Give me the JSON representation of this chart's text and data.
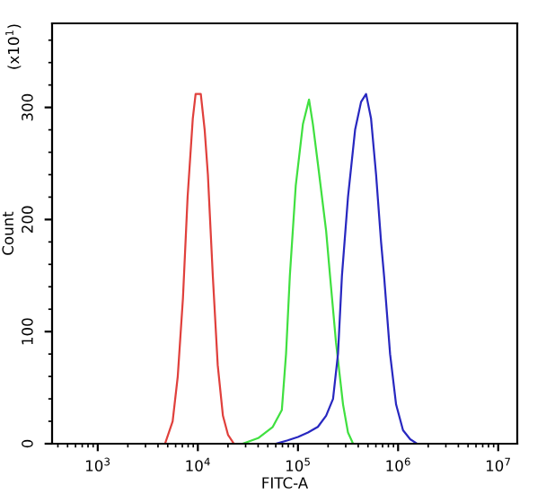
{
  "chart_data": {
    "type": "line",
    "xlabel": "FITC-A",
    "ylabel": "Count",
    "annotations": [
      "(x10$^{1}$)"
    ],
    "log": "x",
    "grid": false,
    "legend": false,
    "marker": "none",
    "line_style": "solid",
    "xlim": [
      350,
      15500000
    ],
    "ylim": [
      0,
      375
    ],
    "xticks": [
      {
        "value": 1000,
        "label": "10$^{3}$"
      },
      {
        "value": 10000,
        "label": "10$^{4}$"
      },
      {
        "value": 100000,
        "label": "10$^{5}$"
      },
      {
        "value": 1000000,
        "label": "10$^{6}$"
      },
      {
        "value": 10000000,
        "label": "10$^{7}$"
      }
    ],
    "yticks": [
      0,
      100,
      200,
      300
    ],
    "series": [
      {
        "color": "#e0403c",
        "x": [
          4700,
          5600,
          6300,
          7100,
          7900,
          8900,
          9500,
          10700,
          11700,
          12600,
          14100,
          15800,
          17800,
          20000,
          22900
        ],
        "values": [
          0,
          20,
          60,
          130,
          220,
          290,
          312,
          312,
          280,
          240,
          150,
          70,
          25,
          8,
          0
        ]
      },
      {
        "color": "#40e040",
        "x": [
          28000,
          40000,
          56000,
          69000,
          76000,
          83000,
          95000,
          112000,
          129000,
          141000,
          158000,
          191000,
          209000,
          240000,
          282000,
          316000,
          355000
        ],
        "values": [
          0,
          5,
          15,
          30,
          80,
          150,
          230,
          285,
          307,
          285,
          250,
          190,
          150,
          90,
          35,
          10,
          0
        ]
      },
      {
        "color": "#2828c0",
        "x": [
          60000,
          79000,
          100000,
          126000,
          158000,
          191000,
          224000,
          251000,
          275000,
          316000,
          372000,
          427000,
          479000,
          537000,
          603000,
          676000,
          724000,
          832000,
          955000,
          1120000,
          1320000,
          1550000
        ],
        "values": [
          0,
          3,
          6,
          10,
          15,
          25,
          40,
          80,
          150,
          220,
          280,
          305,
          312,
          290,
          240,
          180,
          150,
          80,
          35,
          12,
          4,
          0
        ]
      }
    ]
  }
}
